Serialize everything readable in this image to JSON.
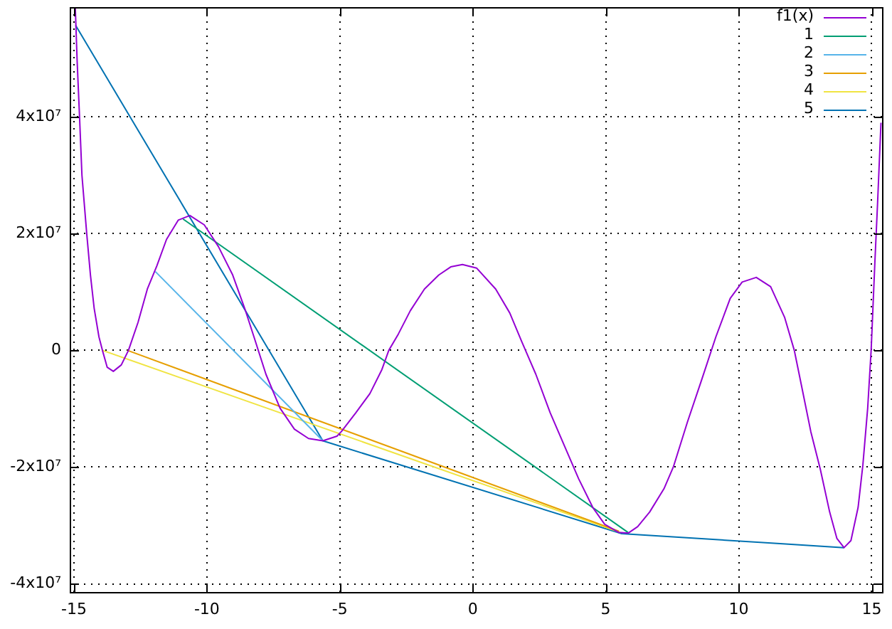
{
  "chart_data": {
    "type": "line",
    "xlim": [
      -15.16,
      15.39
    ],
    "ylim": [
      -41400000,
      58800000
    ],
    "xticks": [
      -15,
      -10,
      -5,
      0,
      5,
      10,
      15
    ],
    "yticks": [
      {
        "value": -40000000,
        "label": "-4x10⁷"
      },
      {
        "value": -20000000,
        "label": "-2x10⁷"
      },
      0,
      {
        "value": 20000000,
        "label": "2x10⁷"
      },
      {
        "value": 40000000,
        "label": "4x10⁷"
      }
    ],
    "grid": true,
    "legend": "top right",
    "marker": "none",
    "series": [
      {
        "name": "f1(x)",
        "color": "#9400d3",
        "x": [
          -14.95,
          -14.88,
          -14.79,
          -14.7,
          -14.52,
          -14.38,
          -14.24,
          -14.06,
          -13.93,
          -13.75,
          -13.52,
          -13.22,
          -12.95,
          -12.59,
          -12.24,
          -11.88,
          -11.52,
          -11.08,
          -10.64,
          -10.1,
          -9.57,
          -9.03,
          -8.58,
          -8.23,
          -7.78,
          -7.25,
          -6.71,
          -6.18,
          -5.64,
          -5.11,
          -4.94,
          -4.4,
          -3.87,
          -3.42,
          -3.16,
          -2.8,
          -2.35,
          -1.82,
          -1.28,
          -0.83,
          -0.39,
          0.14,
          0.86,
          1.39,
          1.84,
          2.37,
          2.91,
          3.44,
          3.98,
          4.51,
          4.96,
          5.49,
          5.85,
          6.2,
          6.65,
          7.19,
          7.54,
          8.07,
          8.61,
          9.14,
          9.68,
          10.13,
          10.66,
          11.2,
          11.73,
          12.09,
          12.35,
          12.71,
          13.07,
          13.42,
          13.69,
          13.96,
          14.22,
          14.49,
          14.67,
          14.85,
          14.98,
          15.12,
          15.22,
          15.35
        ],
        "values": [
          58700000,
          49500000,
          40000000,
          30000000,
          20000000,
          12900000,
          7200000,
          2300000,
          0,
          -2900000,
          -3600000,
          -2500000,
          0,
          4800000,
          10500000,
          14500000,
          19000000,
          22300000,
          23100000,
          21500000,
          17800000,
          12900000,
          7200000,
          2300000,
          -4100000,
          -9900000,
          -13500000,
          -15100000,
          -15500000,
          -14700000,
          -13900000,
          -10700000,
          -7400000,
          -3300000,
          0,
          2800000,
          6800000,
          10500000,
          12900000,
          14300000,
          14700000,
          14100000,
          10500000,
          6400000,
          1500000,
          -4100000,
          -10700000,
          -16300000,
          -22000000,
          -26900000,
          -29800000,
          -31200000,
          -31300000,
          -30200000,
          -27700000,
          -23700000,
          -20000000,
          -12300000,
          -5000000,
          2300000,
          8900000,
          11700000,
          12500000,
          10900000,
          5600000,
          0,
          -5800000,
          -13900000,
          -20400000,
          -27700000,
          -32200000,
          -33800000,
          -32600000,
          -26900000,
          -19600000,
          -9900000,
          0,
          15000000,
          25000000,
          39000000
        ]
      },
      {
        "name": "1",
        "color": "#009e73",
        "x": [
          -10.9,
          5.84
        ],
        "values": [
          22500000,
          -31200000
        ]
      },
      {
        "name": "2",
        "color": "#56b4e9",
        "x": [
          -11.94,
          -5.64
        ],
        "values": [
          13500000,
          -15500000
        ]
      },
      {
        "name": "3",
        "color": "#e69f00",
        "x": [
          -12.99,
          5.5
        ],
        "values": [
          0,
          -31000000
        ]
      },
      {
        "name": "4",
        "color": "#f0e442",
        "x": [
          -13.93,
          5.55
        ],
        "values": [
          0,
          -31200000
        ]
      },
      {
        "name": "5",
        "color": "#0072b2",
        "x": [
          -14.94,
          -5.64,
          5.6,
          13.96
        ],
        "values": [
          55700000,
          -15500000,
          -31400000,
          -33800000
        ]
      }
    ]
  }
}
